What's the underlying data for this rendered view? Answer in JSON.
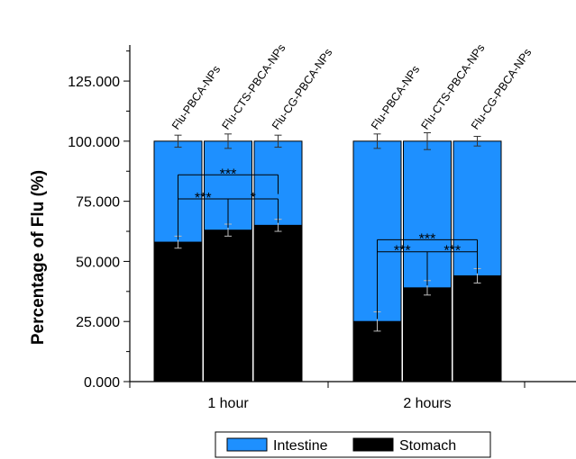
{
  "chart_data": {
    "type": "bar",
    "stacked": true,
    "ylabel": "Percentage of Flu (%)",
    "ylim": [
      0,
      140
    ],
    "yticks": [
      0,
      25,
      50,
      75,
      100,
      125
    ],
    "ytick_labels": [
      "0.000",
      "25.000",
      "50.000",
      "75.000",
      "100.000",
      "125.000"
    ],
    "groups": [
      "1 hour",
      "2 hours"
    ],
    "bar_labels": [
      "Flu-PBCA-NPs",
      "Flu-CTS-PBCA-NPs",
      "Flu-CG-PBCA-NPs"
    ],
    "series": [
      {
        "name": "Stomach",
        "color": "#000000",
        "values": [
          [
            58,
            63,
            65
          ],
          [
            25,
            39,
            44
          ]
        ],
        "errors": [
          [
            2.5,
            2.5,
            2.5
          ],
          [
            4,
            3,
            3
          ]
        ]
      },
      {
        "name": "Intestine",
        "color": "#1E90FF",
        "values": [
          [
            42,
            37,
            35
          ],
          [
            75,
            61,
            56
          ]
        ],
        "errors": [
          [
            2.5,
            3,
            2.5
          ],
          [
            3,
            3.5,
            2
          ]
        ]
      }
    ],
    "significance": [
      {
        "group": 0,
        "from": 0,
        "to": 2,
        "label": "***",
        "level": 1
      },
      {
        "group": 0,
        "from": 0,
        "to": 1,
        "label": "***",
        "level": 0
      },
      {
        "group": 0,
        "from": 1,
        "to": 2,
        "label": "*",
        "level": 0
      },
      {
        "group": 1,
        "from": 0,
        "to": 2,
        "label": "***",
        "level": 1
      },
      {
        "group": 1,
        "from": 0,
        "to": 1,
        "label": "***",
        "level": 0
      },
      {
        "group": 1,
        "from": 1,
        "to": 2,
        "label": "***",
        "level": 0
      }
    ],
    "legend": {
      "position": "bottom",
      "entries": [
        "Intestine",
        "Stomach"
      ]
    }
  }
}
